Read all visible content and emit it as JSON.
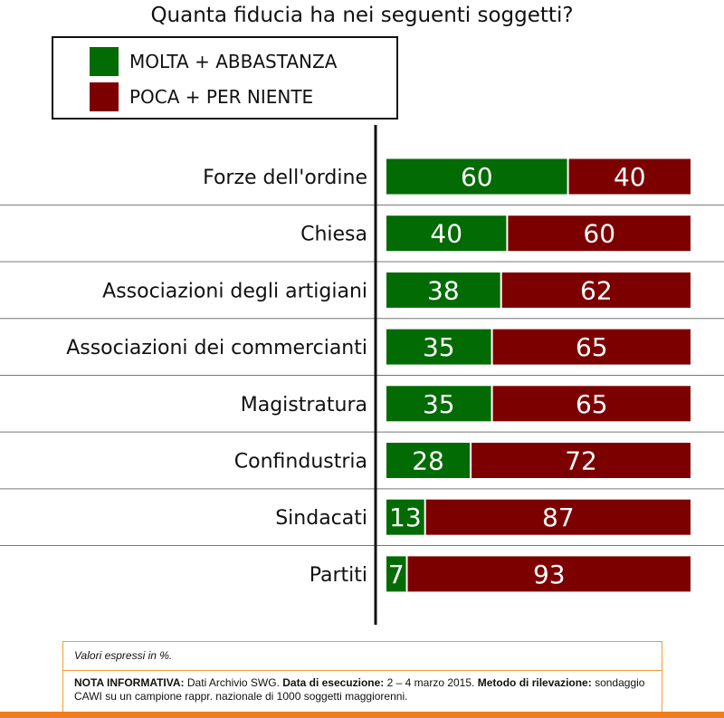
{
  "colors": {
    "positive": "#036b04",
    "negative": "#7d0000",
    "text_on_bar": "#ffffff",
    "axis": "#111111",
    "divider": "#777777",
    "accent": "#f07d1e"
  },
  "chart_data": {
    "type": "bar",
    "orientation": "horizontal",
    "stacked": true,
    "title": "Quanta fiducia ha nei seguenti soggetti?",
    "categories": [
      "Forze dell'ordine",
      "Chiesa",
      "Associazioni degli artigiani",
      "Associazioni dei commercianti",
      "Magistratura",
      "Confindustria",
      "Sindacati",
      "Partiti"
    ],
    "series": [
      {
        "name": "MOLTA + ABBASTANZA",
        "values": [
          60,
          40,
          38,
          35,
          35,
          28,
          13,
          7
        ]
      },
      {
        "name": "POCA + PER NIENTE",
        "values": [
          40,
          60,
          62,
          65,
          65,
          72,
          87,
          93
        ]
      }
    ],
    "xlim": [
      0,
      100
    ],
    "legend_position": "top-left",
    "grid": false
  },
  "note": {
    "units": "Valori espressi in %.",
    "label_info": "NOTA INFORMATIVA:",
    "text_info": "Dati Archivio SWG.",
    "label_date": "Data di esecuzione:",
    "text_date": "2 – 4 marzo 2015.",
    "label_method": "Metodo di rilevazione:",
    "text_method": "sondaggio CAWI su un campione rappr. nazionale di 1000 soggetti maggiorenni."
  }
}
